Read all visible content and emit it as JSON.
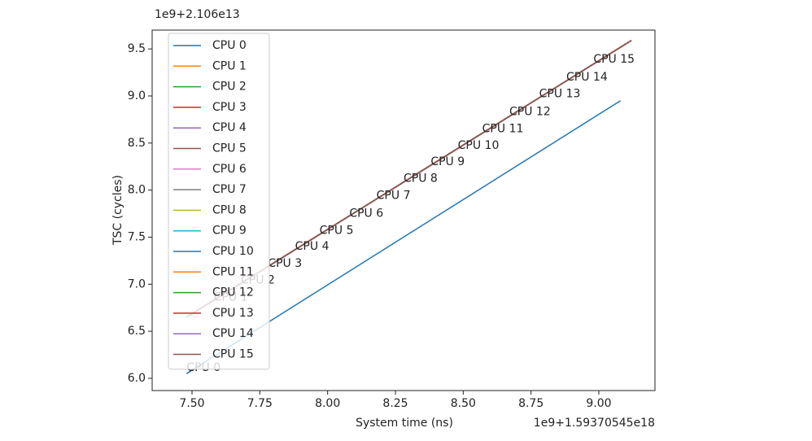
{
  "chart_data": {
    "type": "line",
    "xlabel": "System time (ns)",
    "ylabel": "TSC (cycles)",
    "x_offset": "1e9+1.59370545e18",
    "y_offset": "1e9+2.106e13",
    "xlim": [
      7.353,
      9.207
    ],
    "ylim": [
      5.87,
      9.7
    ],
    "xticks": [
      {
        "value": 7.5,
        "label": "7.50"
      },
      7.75,
      {
        "value": 8,
        "label": "8.00"
      },
      8.25,
      {
        "value": 8.5,
        "label": "8.50"
      },
      8.75,
      {
        "value": 9,
        "label": "9.00"
      }
    ],
    "yticks": [
      {
        "value": 6,
        "label": "6.0"
      },
      6.5,
      {
        "value": 7,
        "label": "7.0"
      },
      7.5,
      {
        "value": 8,
        "label": "8.0"
      },
      8.5,
      {
        "value": 9,
        "label": "9.0"
      },
      9.5
    ],
    "legend": "upper left",
    "series": [
      {
        "name": "CPU 0",
        "color": "#1f77b4",
        "x": [
          7.48,
          9.08
        ],
        "values": [
          6.05,
          8.95
        ]
      },
      {
        "name": "CPU 1",
        "color": "#ff7f0e",
        "x": [
          7.48,
          9.12
        ],
        "values": [
          6.65,
          9.59
        ]
      },
      {
        "name": "CPU 2",
        "color": "#2ca02c",
        "x": [
          7.48,
          9.12
        ],
        "values": [
          6.65,
          9.59
        ]
      },
      {
        "name": "CPU 3",
        "color": "#d62728",
        "x": [
          7.48,
          9.12
        ],
        "values": [
          6.65,
          9.59
        ]
      },
      {
        "name": "CPU 4",
        "color": "#9467bd",
        "x": [
          7.48,
          9.12
        ],
        "values": [
          6.65,
          9.59
        ]
      },
      {
        "name": "CPU 5",
        "color": "#8c564b",
        "x": [
          7.48,
          9.12
        ],
        "values": [
          6.65,
          9.59
        ]
      },
      {
        "name": "CPU 6",
        "color": "#e377c2",
        "x": [
          7.48,
          9.12
        ],
        "values": [
          6.65,
          9.59
        ]
      },
      {
        "name": "CPU 7",
        "color": "#7f7f7f",
        "x": [
          7.48,
          9.12
        ],
        "values": [
          6.65,
          9.59
        ]
      },
      {
        "name": "CPU 8",
        "color": "#bcbd22",
        "x": [
          7.48,
          9.12
        ],
        "values": [
          6.65,
          9.59
        ]
      },
      {
        "name": "CPU 9",
        "color": "#17becf",
        "x": [
          7.48,
          9.12
        ],
        "values": [
          6.65,
          9.59
        ]
      },
      {
        "name": "CPU 10",
        "color": "#1f77b4",
        "x": [
          7.48,
          9.12
        ],
        "values": [
          6.65,
          9.59
        ]
      },
      {
        "name": "CPU 11",
        "color": "#ff7f0e",
        "x": [
          7.48,
          9.12
        ],
        "values": [
          6.65,
          9.59
        ]
      },
      {
        "name": "CPU 12",
        "color": "#2ca02c",
        "x": [
          7.48,
          9.12
        ],
        "values": [
          6.65,
          9.59
        ]
      },
      {
        "name": "CPU 13",
        "color": "#d62728",
        "x": [
          7.48,
          9.12
        ],
        "values": [
          6.65,
          9.59
        ]
      },
      {
        "name": "CPU 14",
        "color": "#9467bd",
        "x": [
          7.48,
          9.12
        ],
        "values": [
          6.65,
          9.59
        ]
      },
      {
        "name": "CPU 15",
        "color": "#8c564b",
        "x": [
          7.48,
          9.12
        ],
        "values": [
          6.65,
          9.59
        ]
      }
    ],
    "annotations": [
      {
        "text": "CPU 0",
        "x": 7.48,
        "y": 6.05
      },
      {
        "text": "CPU 1",
        "x": 7.58,
        "y": 6.8
      },
      {
        "text": "CPU 2",
        "x": 7.68,
        "y": 6.98
      },
      {
        "text": "CPU 3",
        "x": 7.78,
        "y": 7.16
      },
      {
        "text": "CPU 4",
        "x": 7.88,
        "y": 7.34
      },
      {
        "text": "CPU 5",
        "x": 7.97,
        "y": 7.51
      },
      {
        "text": "CPU 6",
        "x": 8.08,
        "y": 7.69
      },
      {
        "text": "CPU 7",
        "x": 8.18,
        "y": 7.88
      },
      {
        "text": "CPU 8",
        "x": 8.28,
        "y": 8.06
      },
      {
        "text": "CPU 9",
        "x": 8.38,
        "y": 8.24
      },
      {
        "text": "CPU 10",
        "x": 8.48,
        "y": 8.41
      },
      {
        "text": "CPU 11",
        "x": 8.57,
        "y": 8.59
      },
      {
        "text": "CPU 12",
        "x": 8.67,
        "y": 8.77
      },
      {
        "text": "CPU 13",
        "x": 8.78,
        "y": 8.96
      },
      {
        "text": "CPU 14",
        "x": 8.88,
        "y": 9.14
      },
      {
        "text": "CPU 15",
        "x": 8.98,
        "y": 9.33
      }
    ]
  }
}
